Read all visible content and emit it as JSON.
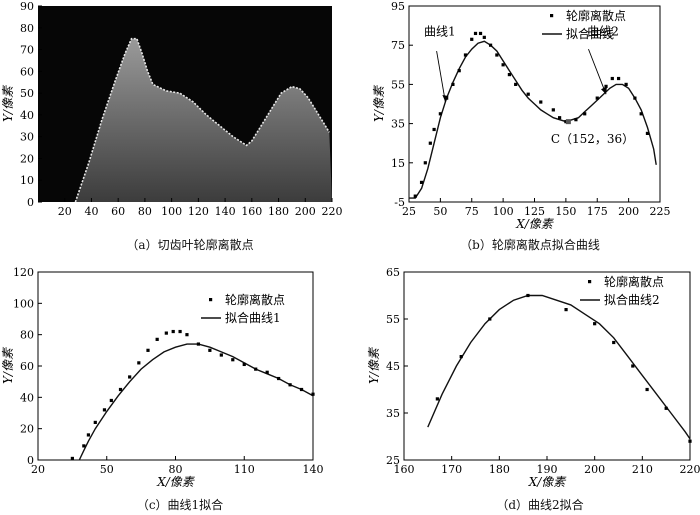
{
  "chart_data": [
    {
      "panel": "a",
      "type": "image",
      "caption": "（a）切齿叶轮廓离散点",
      "ylabel": "Y/像素",
      "xlim": [
        0,
        220
      ],
      "ylim": [
        0,
        90
      ],
      "xticks": [
        "20",
        "40",
        "60",
        "80",
        "100",
        "120",
        "140",
        "160",
        "180",
        "200",
        "220"
      ],
      "yticks": [
        "0",
        "10",
        "20",
        "30",
        "40",
        "50",
        "60",
        "70",
        "80",
        "90"
      ],
      "profile": [
        [
          28,
          0
        ],
        [
          38,
          18
        ],
        [
          48,
          38
        ],
        [
          58,
          56
        ],
        [
          65,
          68
        ],
        [
          70,
          75
        ],
        [
          74,
          75
        ],
        [
          78,
          68
        ],
        [
          82,
          60
        ],
        [
          86,
          54
        ],
        [
          96,
          51
        ],
        [
          106,
          50
        ],
        [
          116,
          46
        ],
        [
          126,
          40
        ],
        [
          136,
          35
        ],
        [
          146,
          30
        ],
        [
          156,
          26
        ],
        [
          160,
          28
        ],
        [
          166,
          34
        ],
        [
          174,
          42
        ],
        [
          182,
          50
        ],
        [
          190,
          53
        ],
        [
          196,
          52
        ],
        [
          202,
          48
        ],
        [
          208,
          42
        ],
        [
          214,
          36
        ],
        [
          218,
          32
        ]
      ]
    },
    {
      "panel": "b",
      "type": "scatter+line",
      "caption": "（b）轮廓离散点拟合曲线",
      "xlabel": "X/像素",
      "ylabel": "Y/像素",
      "xlim": [
        25,
        225
      ],
      "ylim": [
        -5,
        95
      ],
      "xticks": [
        "25",
        "50",
        "75",
        "100",
        "125",
        "150",
        "175",
        "200",
        "225"
      ],
      "yticks": [
        "-5",
        "15",
        "35",
        "55",
        "75",
        "95"
      ],
      "legend": [
        "轮廓离散点",
        "拟合曲线"
      ],
      "annotations": {
        "curve1": "曲线1",
        "curve2": "曲线2",
        "point_label": "C（152，36）",
        "point": [
          152,
          36
        ]
      },
      "points": [
        [
          30,
          -2
        ],
        [
          35,
          5
        ],
        [
          38,
          15
        ],
        [
          42,
          25
        ],
        [
          45,
          32
        ],
        [
          50,
          40
        ],
        [
          55,
          48
        ],
        [
          60,
          55
        ],
        [
          65,
          62
        ],
        [
          70,
          70
        ],
        [
          75,
          78
        ],
        [
          78,
          81
        ],
        [
          82,
          81
        ],
        [
          85,
          79
        ],
        [
          90,
          75
        ],
        [
          95,
          70
        ],
        [
          100,
          65
        ],
        [
          105,
          60
        ],
        [
          110,
          55
        ],
        [
          120,
          50
        ],
        [
          130,
          46
        ],
        [
          140,
          42
        ],
        [
          145,
          38
        ],
        [
          150,
          36
        ],
        [
          158,
          37
        ],
        [
          165,
          40
        ],
        [
          175,
          48
        ],
        [
          182,
          54
        ],
        [
          187,
          58
        ],
        [
          192,
          58
        ],
        [
          198,
          55
        ],
        [
          205,
          48
        ],
        [
          210,
          40
        ],
        [
          215,
          30
        ]
      ],
      "curve": [
        [
          25,
          -3
        ],
        [
          30,
          -3
        ],
        [
          35,
          2
        ],
        [
          40,
          12
        ],
        [
          45,
          25
        ],
        [
          50,
          38
        ],
        [
          55,
          48
        ],
        [
          60,
          56
        ],
        [
          65,
          63
        ],
        [
          70,
          69
        ],
        [
          75,
          73
        ],
        [
          80,
          76
        ],
        [
          85,
          77
        ],
        [
          90,
          75
        ],
        [
          95,
          72
        ],
        [
          100,
          67
        ],
        [
          105,
          62
        ],
        [
          110,
          57
        ],
        [
          115,
          52
        ],
        [
          120,
          48
        ],
        [
          125,
          45
        ],
        [
          130,
          42
        ],
        [
          135,
          40
        ],
        [
          140,
          38
        ],
        [
          145,
          37
        ],
        [
          150,
          36
        ],
        [
          155,
          37
        ],
        [
          160,
          38
        ],
        [
          165,
          41
        ],
        [
          170,
          44
        ],
        [
          175,
          47
        ],
        [
          180,
          50
        ],
        [
          185,
          53
        ],
        [
          190,
          55
        ],
        [
          195,
          55
        ],
        [
          200,
          53
        ],
        [
          205,
          48
        ],
        [
          210,
          42
        ],
        [
          215,
          33
        ],
        [
          220,
          22
        ],
        [
          222,
          14
        ]
      ]
    },
    {
      "panel": "c",
      "type": "scatter+line",
      "caption": "（c）曲线1拟合",
      "xlabel": "X/像素",
      "ylabel": "Y/像素",
      "xlim": [
        20,
        140
      ],
      "ylim": [
        0,
        120
      ],
      "xticks": [
        "20",
        "50",
        "80",
        "110",
        "140"
      ],
      "yticks": [
        "0",
        "20",
        "40",
        "60",
        "80",
        "100",
        "120"
      ],
      "legend": [
        "轮廓离散点",
        "拟合曲线1"
      ],
      "points": [
        [
          35,
          1
        ],
        [
          40,
          9
        ],
        [
          42,
          16
        ],
        [
          45,
          24
        ],
        [
          49,
          32
        ],
        [
          52,
          38
        ],
        [
          56,
          45
        ],
        [
          60,
          53
        ],
        [
          64,
          62
        ],
        [
          68,
          70
        ],
        [
          72,
          77
        ],
        [
          76,
          81
        ],
        [
          79,
          82
        ],
        [
          82,
          82
        ],
        [
          85,
          80
        ],
        [
          90,
          74
        ],
        [
          95,
          70
        ],
        [
          100,
          67
        ],
        [
          105,
          64
        ],
        [
          110,
          61
        ],
        [
          115,
          58
        ],
        [
          120,
          56
        ],
        [
          125,
          52
        ],
        [
          130,
          48
        ],
        [
          135,
          45
        ],
        [
          140,
          42
        ]
      ],
      "curve": [
        [
          38,
          0
        ],
        [
          40,
          6
        ],
        [
          42,
          12
        ],
        [
          45,
          20
        ],
        [
          50,
          31
        ],
        [
          55,
          41
        ],
        [
          60,
          50
        ],
        [
          65,
          58
        ],
        [
          70,
          64
        ],
        [
          75,
          69
        ],
        [
          80,
          72
        ],
        [
          85,
          74
        ],
        [
          90,
          74
        ],
        [
          95,
          72
        ],
        [
          100,
          69
        ],
        [
          105,
          66
        ],
        [
          110,
          62
        ],
        [
          115,
          58
        ],
        [
          120,
          55
        ],
        [
          125,
          52
        ],
        [
          130,
          48
        ],
        [
          135,
          45
        ],
        [
          140,
          41
        ]
      ]
    },
    {
      "panel": "d",
      "type": "scatter+line",
      "caption": "（d）曲线2拟合",
      "xlabel": "X/像素",
      "ylabel": "Y/像素",
      "xlim": [
        160,
        220
      ],
      "ylim": [
        25,
        65
      ],
      "xticks": [
        "160",
        "170",
        "180",
        "190",
        "200",
        "210",
        "220"
      ],
      "yticks": [
        "25",
        "35",
        "45",
        "55",
        "65"
      ],
      "legend": [
        "轮廓离散点",
        "拟合曲线2"
      ],
      "points": [
        [
          167,
          38
        ],
        [
          172,
          47
        ],
        [
          178,
          55
        ],
        [
          186,
          60
        ],
        [
          194,
          57
        ],
        [
          200,
          54
        ],
        [
          204,
          50
        ],
        [
          208,
          45
        ],
        [
          211,
          40
        ],
        [
          215,
          36
        ],
        [
          220,
          29
        ]
      ],
      "curve": [
        [
          165,
          32
        ],
        [
          168,
          39
        ],
        [
          171,
          45
        ],
        [
          174,
          50
        ],
        [
          177,
          54
        ],
        [
          180,
          57
        ],
        [
          183,
          59
        ],
        [
          186,
          60
        ],
        [
          189,
          60
        ],
        [
          192,
          59
        ],
        [
          195,
          58
        ],
        [
          198,
          56
        ],
        [
          201,
          54
        ],
        [
          204,
          51
        ],
        [
          207,
          47
        ],
        [
          210,
          43
        ],
        [
          213,
          39
        ],
        [
          216,
          35
        ],
        [
          219,
          31
        ],
        [
          220,
          29.5
        ]
      ]
    }
  ]
}
